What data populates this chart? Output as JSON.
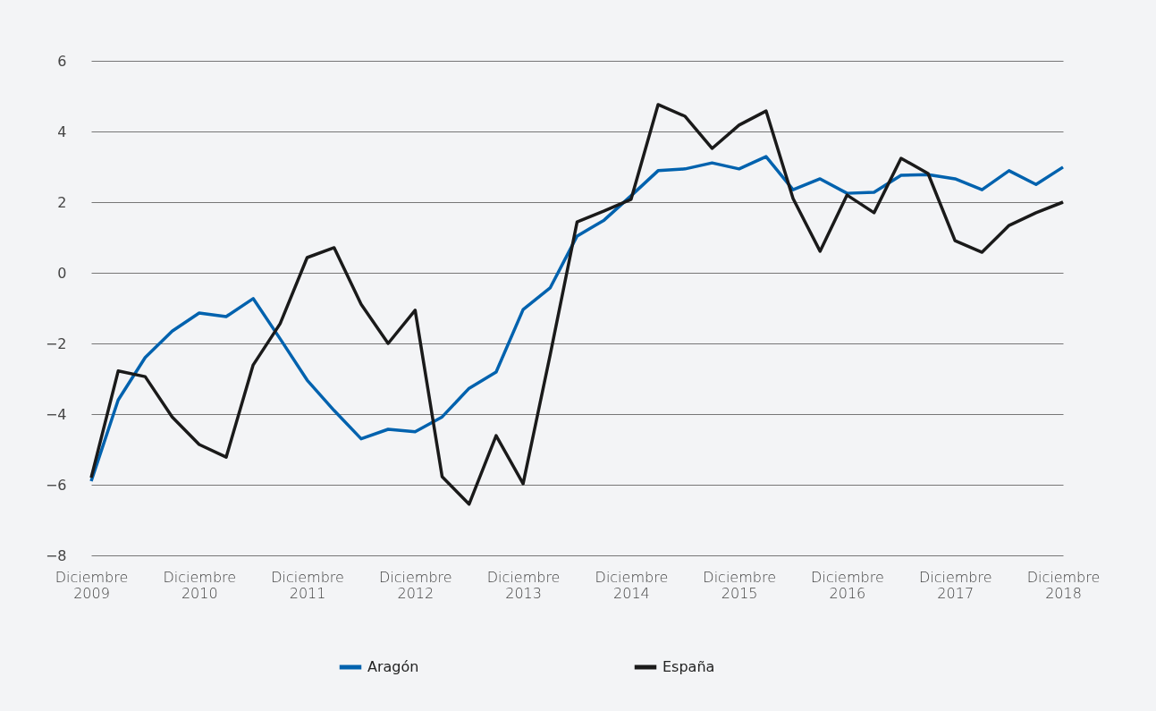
{
  "chart_data": {
    "type": "line",
    "categories": [
      "Diciembre 2009",
      null,
      null,
      null,
      "Diciembre 2010",
      null,
      null,
      null,
      "Diciembre 2011",
      null,
      null,
      null,
      "Diciembre 2012",
      null,
      null,
      null,
      "Diciembre 2013",
      null,
      null,
      null,
      "Diciembre 2014",
      null,
      null,
      null,
      "Diciembre 2015",
      null,
      null,
      null,
      "Diciembre 2016",
      null,
      null,
      null,
      "Diciembre 2017",
      null,
      null,
      null,
      "Diciembre 2018"
    ],
    "series": [
      {
        "name": "Aragón",
        "color": "#0062ae",
        "values": [
          -5.9,
          -3.6,
          -2.4,
          -1.65,
          -1.14,
          -1.24,
          -0.73,
          -1.87,
          -3.04,
          -3.9,
          -4.7,
          -4.43,
          -4.5,
          -4.08,
          -3.27,
          -2.81,
          -1.04,
          -0.43,
          1.04,
          1.49,
          2.18,
          2.89,
          2.94,
          3.11,
          2.94,
          3.29,
          2.35,
          2.66,
          2.25,
          2.28,
          2.76,
          2.78,
          2.66,
          2.35,
          2.89,
          2.5,
          2.99
        ]
      },
      {
        "name": "España",
        "color": "#1a1a1a",
        "values": [
          -5.8,
          -2.78,
          -2.94,
          -4.08,
          -4.86,
          -5.22,
          -2.61,
          -1.44,
          0.43,
          0.71,
          -0.89,
          -2.0,
          -1.06,
          -5.77,
          -6.55,
          -4.61,
          -5.97,
          -2.33,
          1.44,
          1.75,
          2.08,
          4.76,
          4.43,
          3.52,
          4.18,
          4.58,
          2.1,
          0.61,
          2.2,
          1.7,
          3.24,
          2.81,
          0.91,
          0.58,
          1.34,
          1.7,
          2.0
        ]
      }
    ],
    "ylim": [
      -8,
      6
    ],
    "yticks": [
      {
        "value": -8,
        "label": "−8"
      },
      {
        "value": -6,
        "label": "−6"
      },
      {
        "value": -4,
        "label": "−4"
      },
      {
        "value": -2,
        "label": "−2"
      },
      0,
      2,
      4,
      6
    ],
    "grid": "y",
    "legend": "bottom",
    "marker": "none",
    "line_style": "solid"
  }
}
